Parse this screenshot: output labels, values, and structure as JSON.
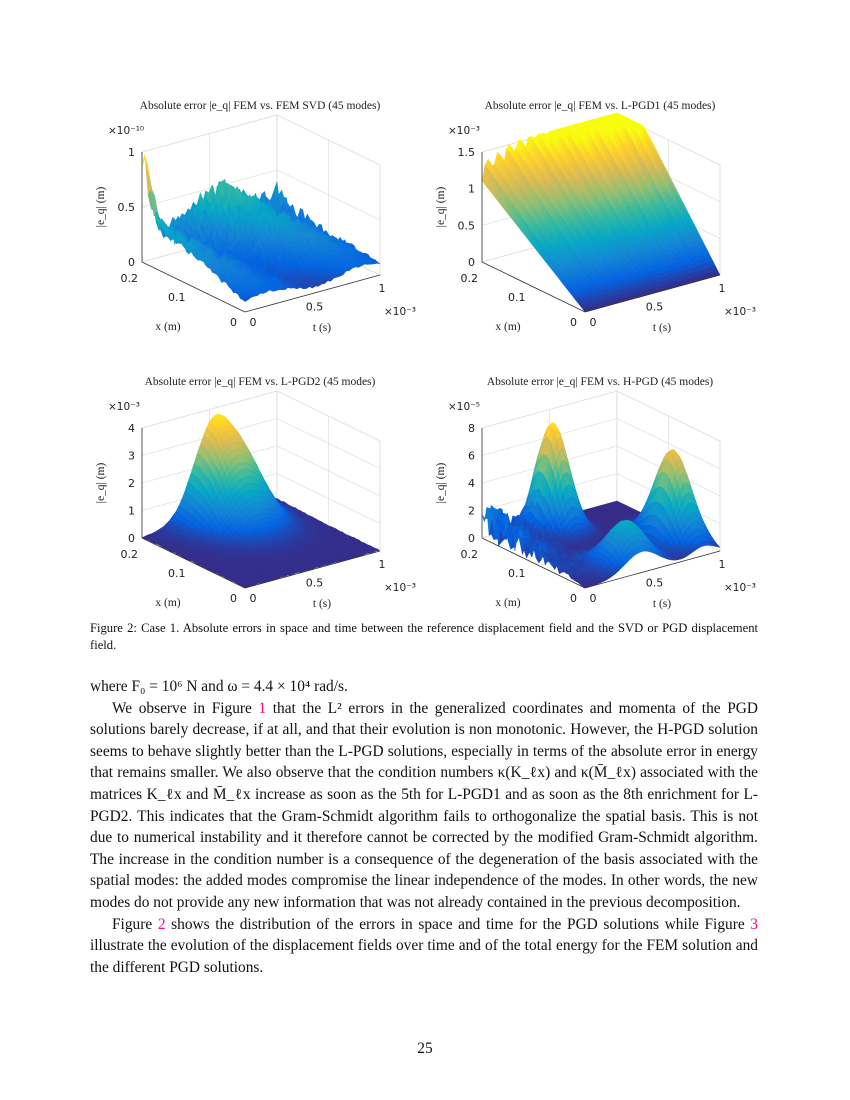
{
  "chart_data": [
    {
      "type": "surface",
      "title": "Absolute error |e_q| FEM vs. FEM SVD (45 modes)",
      "xlabel": "x (m)",
      "tlabel": "t (s)",
      "zlabel": "|e_q| (m)",
      "x_ticks": [
        "0",
        "0.1",
        "0.2"
      ],
      "t_ticks": [
        "0",
        "0.5",
        "1"
      ],
      "t_exponent": "×10⁻³",
      "z_ticks": [
        "0",
        "0.5",
        "1"
      ],
      "z_exponent": "×10⁻¹⁰",
      "xlim": [
        0,
        0.2
      ],
      "tlim": [
        0,
        0.001
      ],
      "zlim": [
        0,
        1e-10
      ],
      "colormap": "parula",
      "grid": true
    },
    {
      "type": "surface",
      "title": "Absolute error |e_q| FEM vs. L-PGD1 (45 modes)",
      "xlabel": "x (m)",
      "tlabel": "t (s)",
      "zlabel": "|e_q| (m)",
      "x_ticks": [
        "0",
        "0.1",
        "0.2"
      ],
      "t_ticks": [
        "0",
        "0.5",
        "1"
      ],
      "t_exponent": "×10⁻³",
      "z_ticks": [
        "0",
        "0.5",
        "1",
        "1.5"
      ],
      "z_exponent": "×10⁻³",
      "xlim": [
        0,
        0.2
      ],
      "tlim": [
        0,
        0.001
      ],
      "zlim": [
        0,
        0.0015
      ],
      "colormap": "parula",
      "grid": true
    },
    {
      "type": "surface",
      "title": "Absolute error |e_q| FEM vs. L-PGD2 (45 modes)",
      "xlabel": "x (m)",
      "tlabel": "t (s)",
      "zlabel": "|e_q| (m)",
      "x_ticks": [
        "0",
        "0.1",
        "0.2"
      ],
      "t_ticks": [
        "0",
        "0.5",
        "1"
      ],
      "t_exponent": "×10⁻³",
      "z_ticks": [
        "0",
        "1",
        "2",
        "3",
        "4"
      ],
      "z_exponent": "×10⁻³",
      "xlim": [
        0,
        0.2
      ],
      "tlim": [
        0,
        0.001
      ],
      "zlim": [
        0,
        0.004
      ],
      "colormap": "parula",
      "grid": true
    },
    {
      "type": "surface",
      "title": "Absolute error |e_q| FEM vs. H-PGD (45 modes)",
      "xlabel": "x (m)",
      "tlabel": "t (s)",
      "zlabel": "|e_q| (m)",
      "x_ticks": [
        "0",
        "0.1",
        "0.2"
      ],
      "t_ticks": [
        "0",
        "0.5",
        "1"
      ],
      "t_exponent": "×10⁻³",
      "z_ticks": [
        "0",
        "2",
        "4",
        "6",
        "8"
      ],
      "z_exponent": "×10⁻⁵",
      "xlim": [
        0,
        0.2
      ],
      "tlim": [
        0,
        0.001
      ],
      "zlim": [
        0,
        8e-05
      ],
      "colormap": "parula",
      "grid": true
    }
  ],
  "caption": "Figure 2: Case 1. Absolute errors in space and time between the reference displacement field and the SVD or PGD displacement field.",
  "body": {
    "p1": "where F₀ = 10⁶ N and ω = 4.4 × 10⁴ rad/s.",
    "p2a": "We observe in Figure ",
    "p2ref": "1",
    "p2b": " that the L² errors in the generalized coordinates and momenta of the PGD solutions barely decrease, if at all, and that their evolution is non monotonic. However, the H-PGD solution seems to behave slightly better than the L-PGD solutions, especially in terms of the absolute error in energy that remains smaller. We also observe that the condition numbers κ(K_ℓx) and κ(M̄_ℓx) associated with the matrices K_ℓx and M̄_ℓx increase as soon as the 5th for L-PGD1 and as soon as the 8th enrichment for L-PGD2. This indicates that the Gram-Schmidt algorithm fails to orthogonalize the spatial basis. This is not due to numerical instability and it therefore cannot be corrected by the modified Gram-Schmidt algorithm. The increase in the condition number is a consequence of the degeneration of the basis associated with the spatial modes: the added modes compromise the linear independence of the modes. In other words, the new modes do not provide any new information that was not already contained in the previous decomposition.",
    "p3a": "Figure ",
    "p3ref1": "2",
    "p3b": " shows the distribution of the errors in space and time for the PGD solutions while Figure ",
    "p3ref2": "3",
    "p3c": " illustrate the evolution of the displacement fields over time and of the total energy for the FEM solution and the different PGD solutions."
  },
  "page_number": "25",
  "colors": {
    "link": "#e0118a",
    "grid": "#dcdcdc"
  }
}
